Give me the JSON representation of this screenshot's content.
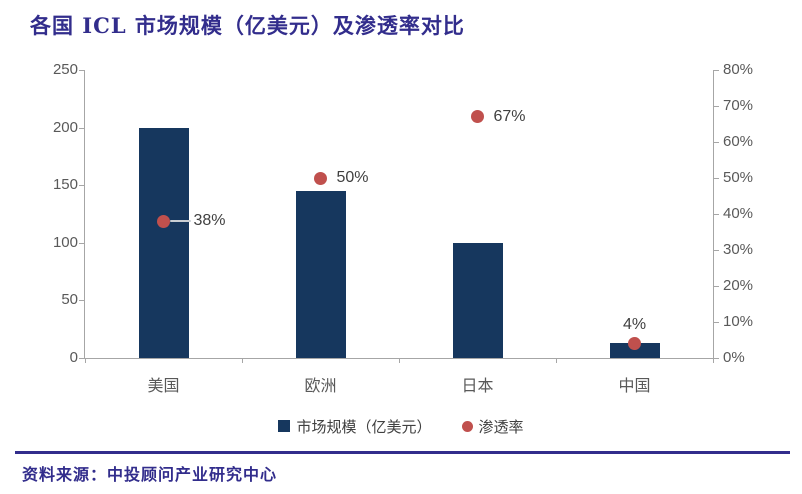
{
  "title": "各国 ICL 市场规模（亿美元）及渗透率对比",
  "source": "资料来源：中投顾问产业研究中心",
  "colors": {
    "bar": "#16375E",
    "dot": "#C0504D",
    "title_text": "#322D8C",
    "axis_text": "#595959",
    "axis_line": "#A6A6A6",
    "data_label_text": "#404040",
    "leader_line": "#C9CED4"
  },
  "chart_data": {
    "type": "bar",
    "subtype": "combo-bar-scatter-dual-axis",
    "categories": [
      "美国",
      "欧洲",
      "日本",
      "中国"
    ],
    "series": [
      {
        "name": "市场规模（亿美元）",
        "kind": "bar",
        "axis": "left",
        "values": [
          200,
          145,
          100,
          13
        ]
      },
      {
        "name": "渗透率",
        "kind": "scatter",
        "axis": "right",
        "values": [
          38,
          50,
          67,
          4
        ],
        "labels": [
          "38%",
          "50%",
          "67%",
          "4%"
        ],
        "label_positions": [
          "right-leader",
          "right",
          "right",
          "above"
        ]
      }
    ],
    "left_axis": {
      "min": 0,
      "max": 250,
      "step": 50,
      "ticks": [
        "0",
        "50",
        "100",
        "150",
        "200",
        "250"
      ]
    },
    "right_axis": {
      "min": 0,
      "max": 80,
      "step": 10,
      "ticks": [
        "0%",
        "10%",
        "20%",
        "30%",
        "40%",
        "50%",
        "60%",
        "70%",
        "80%"
      ]
    },
    "grid": false,
    "legend_position": "bottom"
  },
  "legend": {
    "items": [
      {
        "label": "市场规模（亿美元）",
        "marker": "square",
        "color": "#16375E"
      },
      {
        "label": "渗透率",
        "marker": "circle",
        "color": "#C0504D"
      }
    ]
  }
}
